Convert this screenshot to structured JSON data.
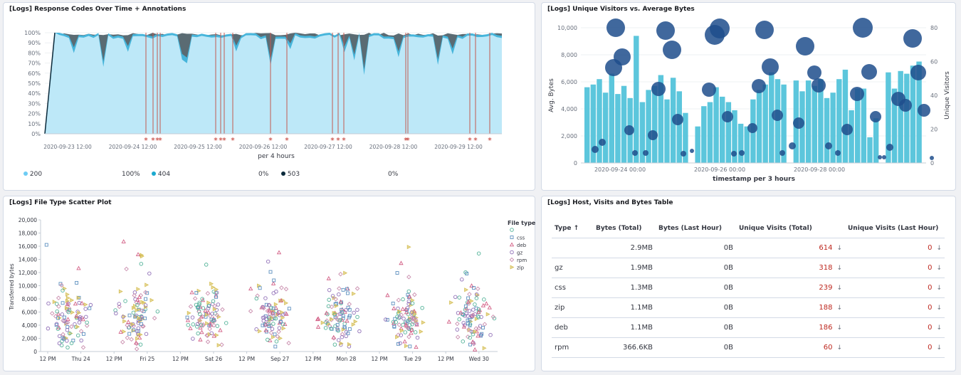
{
  "panels": {
    "response_codes": {
      "title": "[Logs] Response Codes Over Time + Annotations",
      "y_ticks": [
        "100%",
        "90%",
        "80%",
        "70%",
        "60%",
        "50%",
        "40%",
        "30%",
        "20%",
        "10%",
        "0%"
      ],
      "x_ticks": [
        "2020-09-23 12:00",
        "2020-09-24 12:00",
        "2020-09-25 12:00",
        "2020-09-26 12:00",
        "2020-09-27 12:00",
        "2020-09-28 12:00",
        "2020-09-29 12:00"
      ],
      "x_label": "per 4 hours",
      "annotation_marker": "*",
      "legend": [
        {
          "name": "200",
          "value": "100%",
          "color": "#6dccf4"
        },
        {
          "name": "404",
          "value": "0%",
          "color": "#1ba9cf"
        },
        {
          "name": "503",
          "value": "0%",
          "color": "#0b2a3b"
        }
      ]
    },
    "visitors": {
      "title": "[Logs] Unique Visitors vs. Average Bytes",
      "y_left_ticks": [
        "10,000",
        "8,000",
        "6,000",
        "4,000",
        "2,000",
        "0"
      ],
      "y_right_ticks": [
        "80",
        "60",
        "40",
        "20",
        "0"
      ],
      "y_left_label": "Avg. Bytes",
      "y_right_label": "Unique Visitors",
      "x_ticks": [
        "2020-09-24 00:00",
        "2020-09-26 00:00",
        "2020-09-28 00:00"
      ],
      "x_label": "timestamp per 3 hours",
      "bar_color": "#5cc6dc",
      "bubble_color": "#1f4e8c"
    },
    "scatter": {
      "title": "[Logs] File Type Scatter Plot",
      "y_ticks": [
        "20,000",
        "18,000",
        "16,000",
        "14,000",
        "12,000",
        "10,000",
        "8,000",
        "6,000",
        "4,000",
        "2,000",
        "0"
      ],
      "y_label": "Transferred bytes",
      "x_ticks": [
        "12 PM",
        "Thu 24",
        "12 PM",
        "Fri 25",
        "12 PM",
        "Sat 26",
        "12 PM",
        "Sep 27",
        "12 PM",
        "Mon 28",
        "12 PM",
        "Tue 29",
        "12 PM",
        "Wed 30"
      ],
      "legend_title": "File type",
      "legend": [
        {
          "name": "",
          "symbol": "circle",
          "color": "#54b399"
        },
        {
          "name": "css",
          "symbol": "square",
          "color": "#6092c0"
        },
        {
          "name": "deb",
          "symbol": "triangle",
          "color": "#d36086"
        },
        {
          "name": "gz",
          "symbol": "cross",
          "color": "#9170b8"
        },
        {
          "name": "rpm",
          "symbol": "diamond",
          "color": "#ca8eae"
        },
        {
          "name": "zip",
          "symbol": "triangle-right",
          "color": "#d6bf57"
        }
      ]
    },
    "table": {
      "title": "[Logs] Host, Visits and Bytes Table",
      "columns": [
        "Type ↑",
        "Bytes (Total)",
        "Bytes (Last Hour)",
        "Unique Visits (Total)",
        "Unique Visits (Last Hour)"
      ],
      "rows": [
        {
          "type": "",
          "bytes_total": "2.9MB",
          "bytes_last": "0B",
          "visits_total": "614",
          "visits_last": "0"
        },
        {
          "type": "gz",
          "bytes_total": "1.9MB",
          "bytes_last": "0B",
          "visits_total": "318",
          "visits_last": "0"
        },
        {
          "type": "css",
          "bytes_total": "1.3MB",
          "bytes_last": "0B",
          "visits_total": "239",
          "visits_last": "0"
        },
        {
          "type": "zip",
          "bytes_total": "1.1MB",
          "bytes_last": "0B",
          "visits_total": "188",
          "visits_last": "0"
        },
        {
          "type": "deb",
          "bytes_total": "1.1MB",
          "bytes_last": "0B",
          "visits_total": "186",
          "visits_last": "0"
        },
        {
          "type": "rpm",
          "bytes_total": "366.6KB",
          "bytes_last": "0B",
          "visits_total": "60",
          "visits_last": "0"
        }
      ],
      "trend_icon": "↓"
    }
  }
}
